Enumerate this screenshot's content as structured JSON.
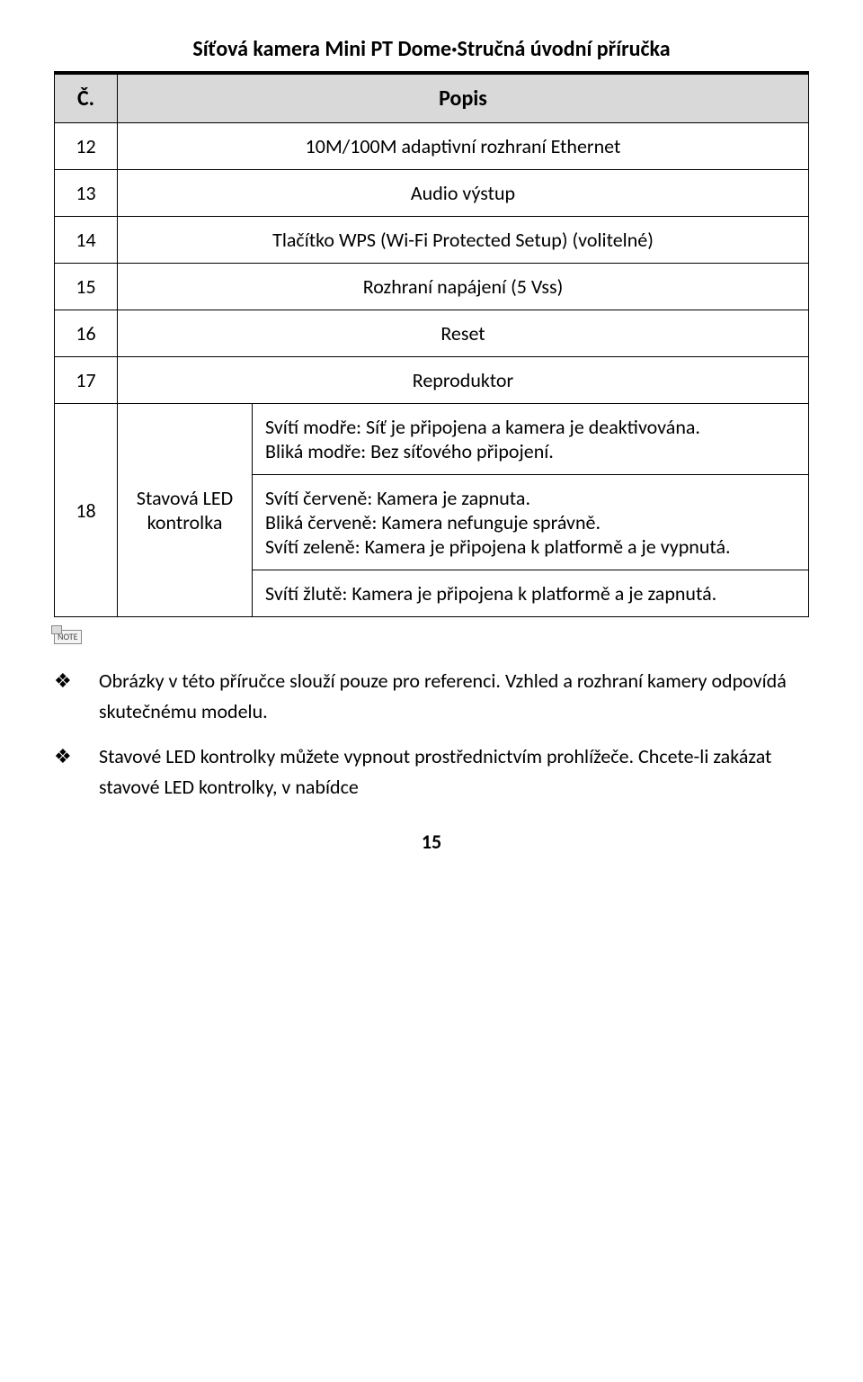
{
  "header": {
    "title": "Síťová kamera Mini PT Dome·Stručná úvodní příručka"
  },
  "table": {
    "col_num": "Č.",
    "col_desc": "Popis",
    "rows": [
      {
        "num": "12",
        "desc": "10M/100M adaptivní rozhraní Ethernet"
      },
      {
        "num": "13",
        "desc": "Audio výstup"
      },
      {
        "num": "14",
        "desc": "Tlačítko WPS (Wi-Fi Protected Setup) (volitelné)"
      },
      {
        "num": "15",
        "desc": "Rozhraní napájení (5 Vss)"
      },
      {
        "num": "16",
        "desc": "Reset"
      },
      {
        "num": "17",
        "desc": "Reproduktor"
      }
    ],
    "row18": {
      "num": "18",
      "led_label": "Stavová LED kontrolka",
      "states": [
        "Svítí modře: Síť je připojena a kamera je deaktivována.\nBliká modře: Bez síťového připojení.",
        "Svítí červeně: Kamera je zapnuta.\nBliká červeně: Kamera nefunguje správně.\nSvítí zeleně: Kamera je připojena k platformě a je vypnutá.",
        "Svítí žlutě: Kamera je připojena k platformě a je zapnutá."
      ]
    }
  },
  "note_label": "NOTE",
  "notes": [
    "Obrázky v této příručce slouží pouze pro referenci. Vzhled a rozhraní kamery odpovídá skutečnému modelu.",
    "Stavové LED kontrolky můžete vypnout prostřednictvím prohlížeče. Chcete-li zakázat stavové LED kontrolky, v nabídce"
  ],
  "page_number": "15"
}
